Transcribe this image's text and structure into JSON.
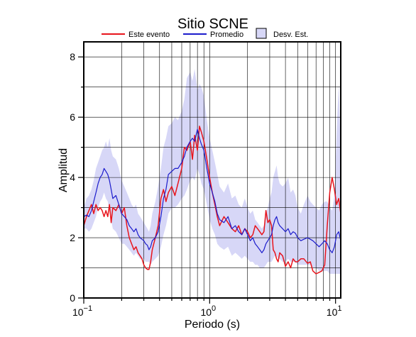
{
  "chart_data": {
    "type": "line",
    "title": "Sitio SCNE",
    "xlabel": "Periodo (s)",
    "ylabel": "Amplitud",
    "x_scale": "log",
    "xlim": [
      0.1,
      11
    ],
    "ylim": [
      0,
      8.5
    ],
    "grid": true,
    "legend_position": "top",
    "x_ticks": [
      {
        "value": 0.1,
        "base": "10",
        "exp": "−1"
      },
      {
        "value": 1,
        "base": "10",
        "exp": "0"
      },
      {
        "value": 10,
        "base": "10",
        "exp": "1"
      }
    ],
    "y_ticks": [
      0,
      2,
      4,
      6,
      8
    ],
    "legend": [
      {
        "label": "Este evento",
        "kind": "line",
        "color": "#e8141c"
      },
      {
        "label": "Promedio",
        "kind": "line",
        "color": "#1c1ccc"
      },
      {
        "label": "Desv. Est.",
        "kind": "band",
        "color": "#d7d7f7"
      }
    ],
    "series": [
      {
        "name": "Este evento",
        "color": "#e8141c",
        "x": [
          0.1,
          0.105,
          0.11,
          0.115,
          0.12,
          0.125,
          0.13,
          0.135,
          0.14,
          0.145,
          0.15,
          0.155,
          0.16,
          0.165,
          0.17,
          0.18,
          0.19,
          0.2,
          0.21,
          0.22,
          0.23,
          0.24,
          0.25,
          0.26,
          0.27,
          0.28,
          0.29,
          0.3,
          0.31,
          0.32,
          0.33,
          0.34,
          0.35,
          0.37,
          0.39,
          0.41,
          0.43,
          0.45,
          0.47,
          0.5,
          0.53,
          0.56,
          0.6,
          0.63,
          0.66,
          0.7,
          0.73,
          0.76,
          0.8,
          0.83,
          0.86,
          0.9,
          0.95,
          1.0,
          1.05,
          1.1,
          1.15,
          1.2,
          1.3,
          1.4,
          1.5,
          1.6,
          1.7,
          1.8,
          1.9,
          2.0,
          2.1,
          2.2,
          2.3,
          2.4,
          2.5,
          2.6,
          2.7,
          2.8,
          2.9,
          3.0,
          3.1,
          3.2,
          3.3,
          3.4,
          3.5,
          3.6,
          3.8,
          4.0,
          4.2,
          4.4,
          4.6,
          4.8,
          5.0,
          5.3,
          5.6,
          6.0,
          6.3,
          6.6,
          7.0,
          7.4,
          7.8,
          8.2,
          8.6,
          9.0,
          9.4,
          9.8,
          10.2,
          10.6,
          11.0
        ],
        "y": [
          2.4,
          2.7,
          2.9,
          3.1,
          2.8,
          3.1,
          2.9,
          3.0,
          2.9,
          2.7,
          2.9,
          2.7,
          3.1,
          2.5,
          3.0,
          2.9,
          3.1,
          2.8,
          3.0,
          2.4,
          2.0,
          1.8,
          1.6,
          1.7,
          1.5,
          1.4,
          1.3,
          1.1,
          1.0,
          0.95,
          0.95,
          1.2,
          1.6,
          2.0,
          2.4,
          3.3,
          3.6,
          3.2,
          3.5,
          3.7,
          3.4,
          3.8,
          4.3,
          5.0,
          4.9,
          5.2,
          4.6,
          5.4,
          4.9,
          5.7,
          5.5,
          5.2,
          4.6,
          4.0,
          3.5,
          3.1,
          2.7,
          2.4,
          2.7,
          2.5,
          2.3,
          2.2,
          2.4,
          2.1,
          2.3,
          2.2,
          2.0,
          2.1,
          2.4,
          2.3,
          2.2,
          2.1,
          2.2,
          2.9,
          2.5,
          2.6,
          2.4,
          1.6,
          1.5,
          1.3,
          1.2,
          1.5,
          1.4,
          1.05,
          1.2,
          1.0,
          1.3,
          1.2,
          1.2,
          1.3,
          1.3,
          1.15,
          1.2,
          0.9,
          0.8,
          0.85,
          0.9,
          1.1,
          2.4,
          3.5,
          4.0,
          3.6,
          3.1,
          3.3,
          2.8
        ]
      },
      {
        "name": "Promedio",
        "color": "#1c1ccc",
        "x": [
          0.1,
          0.105,
          0.11,
          0.115,
          0.12,
          0.125,
          0.13,
          0.135,
          0.14,
          0.145,
          0.15,
          0.155,
          0.16,
          0.165,
          0.17,
          0.18,
          0.19,
          0.2,
          0.21,
          0.22,
          0.23,
          0.24,
          0.25,
          0.26,
          0.27,
          0.28,
          0.29,
          0.3,
          0.31,
          0.32,
          0.33,
          0.34,
          0.35,
          0.37,
          0.39,
          0.41,
          0.43,
          0.45,
          0.47,
          0.5,
          0.53,
          0.56,
          0.6,
          0.63,
          0.66,
          0.7,
          0.73,
          0.76,
          0.8,
          0.83,
          0.86,
          0.9,
          0.95,
          1.0,
          1.05,
          1.1,
          1.15,
          1.2,
          1.3,
          1.4,
          1.5,
          1.6,
          1.7,
          1.8,
          1.9,
          2.0,
          2.1,
          2.2,
          2.3,
          2.4,
          2.5,
          2.6,
          2.7,
          2.8,
          2.9,
          3.0,
          3.1,
          3.2,
          3.3,
          3.4,
          3.5,
          3.6,
          3.8,
          4.0,
          4.2,
          4.4,
          4.6,
          4.8,
          5.0,
          5.3,
          5.6,
          6.0,
          6.3,
          6.6,
          7.0,
          7.4,
          7.8,
          8.2,
          8.6,
          9.0,
          9.4,
          9.8,
          10.2,
          10.6,
          11.0
        ],
        "y": [
          2.7,
          2.75,
          2.7,
          2.9,
          3.2,
          3.5,
          3.8,
          4.0,
          4.1,
          4.3,
          4.2,
          4.1,
          3.9,
          3.6,
          3.3,
          3.4,
          3.1,
          2.8,
          2.7,
          2.6,
          2.4,
          2.3,
          2.2,
          2.3,
          2.1,
          2.0,
          1.95,
          1.9,
          1.8,
          1.75,
          1.6,
          1.7,
          1.9,
          2.0,
          2.2,
          2.7,
          3.3,
          3.6,
          4.1,
          4.2,
          4.3,
          4.3,
          4.5,
          4.7,
          5.0,
          5.2,
          5.3,
          5.2,
          5.6,
          5.3,
          5.1,
          4.9,
          4.3,
          3.8,
          3.5,
          3.2,
          2.8,
          2.6,
          2.5,
          2.7,
          2.3,
          2.4,
          2.2,
          2.1,
          2.3,
          2.1,
          1.9,
          2.0,
          1.8,
          1.7,
          1.6,
          1.5,
          1.6,
          1.8,
          1.9,
          2.0,
          2.1,
          2.4,
          2.6,
          2.7,
          2.5,
          2.4,
          2.3,
          2.2,
          2.3,
          2.1,
          2.2,
          2.15,
          2.0,
          1.9,
          1.95,
          2.0,
          1.95,
          1.9,
          1.8,
          1.7,
          1.8,
          1.9,
          1.8,
          1.6,
          1.5,
          1.7,
          2.1,
          2.2,
          1.9
        ]
      }
    ],
    "band": {
      "name": "Desv. Est.",
      "color": "#d7d7f7",
      "x": [
        0.1,
        0.105,
        0.11,
        0.115,
        0.12,
        0.125,
        0.13,
        0.135,
        0.14,
        0.145,
        0.15,
        0.155,
        0.16,
        0.165,
        0.17,
        0.18,
        0.19,
        0.2,
        0.21,
        0.22,
        0.23,
        0.24,
        0.25,
        0.26,
        0.27,
        0.28,
        0.29,
        0.3,
        0.31,
        0.32,
        0.33,
        0.34,
        0.35,
        0.37,
        0.39,
        0.41,
        0.43,
        0.45,
        0.47,
        0.5,
        0.53,
        0.56,
        0.6,
        0.63,
        0.66,
        0.7,
        0.73,
        0.76,
        0.8,
        0.83,
        0.86,
        0.9,
        0.95,
        1.0,
        1.05,
        1.1,
        1.15,
        1.2,
        1.3,
        1.4,
        1.5,
        1.6,
        1.7,
        1.8,
        1.9,
        2.0,
        2.1,
        2.2,
        2.3,
        2.4,
        2.5,
        2.6,
        2.7,
        2.8,
        2.9,
        3.0,
        3.1,
        3.2,
        3.3,
        3.4,
        3.5,
        3.6,
        3.8,
        4.0,
        4.2,
        4.4,
        4.6,
        4.8,
        5.0,
        5.3,
        5.6,
        6.0,
        6.3,
        6.6,
        7.0,
        7.4,
        7.8,
        8.2,
        8.6,
        9.0,
        9.4,
        9.8,
        10.2,
        10.6,
        11.0
      ],
      "upper": [
        3.0,
        3.3,
        3.4,
        3.6,
        3.9,
        4.3,
        4.5,
        4.7,
        4.9,
        5.0,
        5.2,
        5.0,
        5.3,
        4.9,
        4.7,
        4.6,
        4.3,
        3.9,
        3.7,
        3.5,
        3.3,
        3.1,
        3.0,
        3.1,
        2.8,
        2.7,
        2.6,
        2.5,
        2.4,
        2.3,
        2.2,
        2.4,
        2.8,
        3.2,
        3.7,
        4.3,
        5.0,
        5.3,
        5.7,
        5.8,
        6.0,
        5.9,
        6.2,
        6.6,
        7.3,
        7.5,
        7.2,
        7.6,
        6.9,
        7.1,
        7.0,
        6.7,
        5.9,
        5.3,
        4.9,
        4.5,
        4.1,
        3.7,
        3.5,
        3.8,
        3.3,
        3.4,
        3.1,
        3.0,
        3.3,
        3.0,
        2.8,
        2.9,
        2.6,
        2.5,
        2.4,
        2.3,
        2.4,
        2.8,
        3.0,
        3.3,
        3.5,
        4.0,
        4.2,
        4.4,
        4.0,
        3.8,
        3.7,
        3.8,
        4.0,
        3.5,
        3.6,
        3.4,
        3.0,
        2.8,
        3.1,
        3.4,
        3.2,
        3.1,
        3.0,
        2.9,
        3.1,
        3.2,
        3.2,
        3.0,
        2.9,
        3.4,
        5.5,
        7.1,
        4.8
      ],
      "lower": [
        2.3,
        2.3,
        2.2,
        2.3,
        2.5,
        2.7,
        3.0,
        3.2,
        3.3,
        3.5,
        3.3,
        3.2,
        2.9,
        2.6,
        2.3,
        2.2,
        2.0,
        1.8,
        1.8,
        1.7,
        1.6,
        1.5,
        1.4,
        1.5,
        1.4,
        1.3,
        1.3,
        1.3,
        1.2,
        1.2,
        1.2,
        1.1,
        1.2,
        1.3,
        1.4,
        1.7,
        2.1,
        2.4,
        2.8,
        3.0,
        3.0,
        3.1,
        3.3,
        3.4,
        3.6,
        3.9,
        4.0,
        3.9,
        4.3,
        4.1,
        3.8,
        3.6,
        3.1,
        2.6,
        2.3,
        2.1,
        1.8,
        1.7,
        1.6,
        1.7,
        1.4,
        1.5,
        1.4,
        1.3,
        1.4,
        1.3,
        1.2,
        1.2,
        1.1,
        1.1,
        1.0,
        1.0,
        1.0,
        1.1,
        1.2,
        1.2,
        1.2,
        1.3,
        1.4,
        1.4,
        1.3,
        1.3,
        1.2,
        1.2,
        1.3,
        1.2,
        1.2,
        1.2,
        1.1,
        1.1,
        1.1,
        1.1,
        1.1,
        1.0,
        1.0,
        0.9,
        0.9,
        0.9,
        0.9,
        0.8,
        0.8,
        0.8,
        0.8,
        0.8,
        0.8
      ]
    }
  }
}
